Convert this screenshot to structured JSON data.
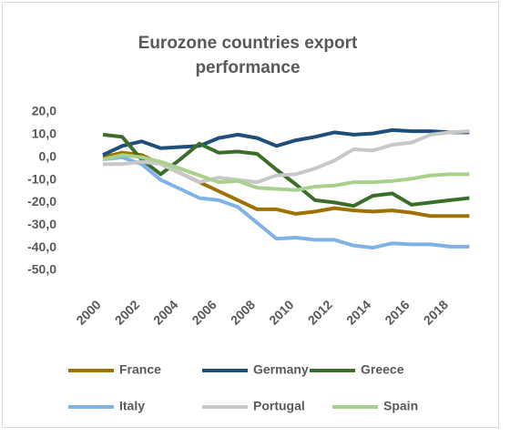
{
  "chart_data": {
    "type": "line",
    "title": [
      "Eurozone countries export",
      "performance"
    ],
    "categories": [
      "2000",
      null,
      "2002",
      null,
      "2004",
      null,
      "2006",
      null,
      "2008",
      null,
      "2010",
      null,
      "2012",
      null,
      "2014",
      null,
      "2016",
      null,
      "2018",
      null
    ],
    "series": [
      {
        "name": "France",
        "color": "#9e7100",
        "values": [
          0,
          2,
          1,
          -3,
          -7,
          -11,
          -15,
          -19,
          -23,
          -23,
          -25,
          -24,
          -22.5,
          -23.5,
          -24,
          -23.5,
          -24.5,
          -26,
          -26,
          -26
        ]
      },
      {
        "name": "Germany",
        "color": "#1f4e79",
        "values": [
          1,
          5,
          7,
          4,
          4.5,
          5,
          8.5,
          10,
          8.5,
          5,
          7.5,
          9,
          11,
          10,
          10.5,
          12,
          11.5,
          11.5,
          11,
          11
        ]
      },
      {
        "name": "Greece",
        "color": "#3b6e2a",
        "values": [
          10,
          9,
          -1,
          -7.5,
          -1,
          6,
          2,
          2.5,
          1.5,
          -5.5,
          -12,
          -19,
          -20,
          -21.5,
          -17,
          -16,
          -21,
          -20,
          -19,
          -18
        ]
      },
      {
        "name": "Italy",
        "color": "#7fb2e5",
        "values": [
          -1,
          0,
          -3,
          -10,
          -14,
          -18,
          -19,
          -22,
          -29,
          -36,
          -35.5,
          -36.5,
          -36.5,
          -39,
          -40,
          -38,
          -38.5,
          -38.5,
          -39.5,
          -39.5
        ]
      },
      {
        "name": "Portugal",
        "color": "#c8c8c8",
        "values": [
          -3,
          -3,
          -2,
          -3,
          -7,
          -11,
          -9,
          -10,
          -11,
          -8,
          -7.5,
          -5,
          -1.5,
          3.5,
          3,
          5.5,
          6.5,
          10,
          11,
          11.5
        ]
      },
      {
        "name": "Spain",
        "color": "#a9d18e",
        "values": [
          -1,
          1,
          0,
          -2,
          -5,
          -8,
          -11,
          -10.5,
          -13.5,
          -14,
          -14.5,
          -13,
          -12.5,
          -11,
          -11,
          -10.5,
          -9.5,
          -8,
          -7.5,
          -7.5
        ]
      }
    ],
    "ylim": [
      -50,
      20
    ],
    "yticks": [
      {
        "value": 20,
        "label": "20,0"
      },
      {
        "value": 10,
        "label": "10,0"
      },
      {
        "value": 0,
        "label": "0,0"
      },
      {
        "value": -10,
        "label": "-10,0"
      },
      {
        "value": -20,
        "label": "-20,0"
      },
      {
        "value": -30,
        "label": "-30,0"
      },
      {
        "value": -40,
        "label": "-40,0"
      },
      {
        "value": -50,
        "label": "-50,0"
      }
    ],
    "grid": false
  }
}
